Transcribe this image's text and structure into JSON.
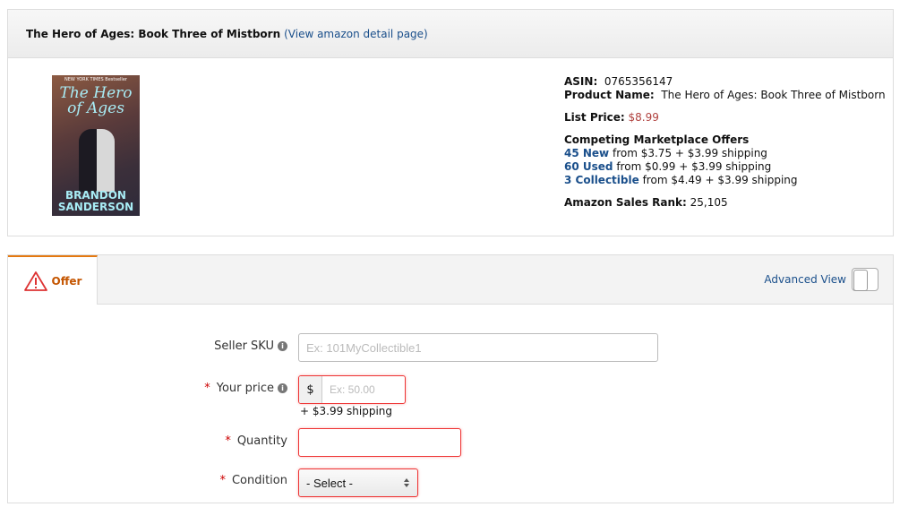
{
  "header": {
    "title": "The Hero of Ages: Book Three of Mistborn",
    "detail_link": "(View amazon detail page)"
  },
  "cover": {
    "badge": "NEW YORK TIMES Bestseller",
    "title": "The Hero of Ages",
    "author": "BRANDON SANDERSON"
  },
  "product": {
    "asin_label": "ASIN:",
    "asin": "0765356147",
    "name_label": "Product Name:",
    "name": "The Hero of Ages: Book Three of Mistborn",
    "list_price_label": "List Price:",
    "list_price": "$8.99",
    "offers_title": "Competing Marketplace Offers",
    "offers": [
      {
        "link": "45 New",
        "text": "from $3.75  + $3.99 shipping"
      },
      {
        "link": "60 Used",
        "text": "from $0.99  + $3.99 shipping"
      },
      {
        "link": "3 Collectible",
        "text": "from $4.49  + $3.99 shipping"
      }
    ],
    "rank_label": "Amazon Sales Rank:",
    "rank": "25,105"
  },
  "offer_tab": {
    "label": "Offer",
    "advanced_view": "Advanced View"
  },
  "form": {
    "required_mark": "*",
    "sku_label": "Seller SKU",
    "sku_placeholder": "Ex: 101MyCollectible1",
    "price_label": "Your price",
    "currency": "$",
    "price_placeholder": "Ex: 50.00",
    "shipping": "+ $3.99 shipping",
    "quantity_label": "Quantity",
    "condition_label": "Condition",
    "condition_value": "- Select -"
  },
  "colors": {
    "accent": "#e47911",
    "link": "#1a4f8b",
    "error": "#e33333",
    "price": "#b0413e"
  }
}
